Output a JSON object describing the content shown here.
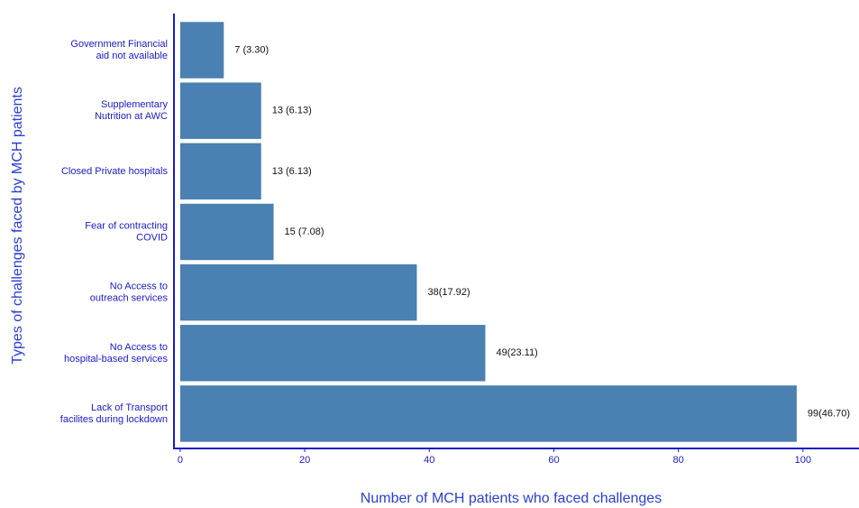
{
  "chart_data": {
    "type": "barh",
    "xlabel": "Number of MCH patients who faced challenges",
    "ylabel": "Types of challenges faced  by MCH patients",
    "categories": [
      "Government Financial\naid not available",
      "Supplementary\nNutrition at AWC",
      "Closed Private hospitals",
      "Fear of contracting\nCOVID",
      "No Access to\noutreach services",
      "No Access to\nhospital-based services",
      "Lack of Transport\nfacilites during lockdown"
    ],
    "values": [
      7,
      13,
      13,
      15,
      38,
      49,
      99
    ],
    "value_labels": [
      "7  (3.30)",
      "13 (6.13)",
      "13 (6.13)",
      "15 (7.08)",
      "38(17.92)",
      "49(23.11)",
      "99(46.70)"
    ],
    "color": "#4a80b2",
    "xlim": [
      -1,
      109
    ],
    "xticks": [
      0,
      20,
      40,
      60,
      80,
      100
    ],
    "grid": false
  }
}
